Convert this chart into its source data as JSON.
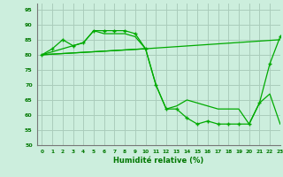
{
  "xlabel": "Humidité relative (%)",
  "background_color": "#cceedd",
  "grid_color": "#aaccbb",
  "line_color": "#00aa00",
  "ylim": [
    50,
    97
  ],
  "xlim": [
    -0.5,
    23
  ],
  "yticks": [
    50,
    55,
    60,
    65,
    70,
    75,
    80,
    85,
    90,
    95
  ],
  "xticks": [
    0,
    1,
    2,
    3,
    4,
    5,
    6,
    7,
    8,
    9,
    10,
    11,
    12,
    13,
    14,
    15,
    16,
    17,
    18,
    19,
    20,
    21,
    22,
    23
  ],
  "line1_x": [
    0,
    1,
    2,
    3,
    4,
    5,
    6,
    7,
    8,
    9,
    10,
    11,
    12,
    13,
    14,
    15,
    16,
    17,
    18,
    19,
    20,
    21,
    22,
    23
  ],
  "line1_y": [
    80,
    82,
    85,
    83,
    84,
    88,
    88,
    88,
    88,
    87,
    82,
    70,
    62,
    62,
    59,
    57,
    58,
    57,
    57,
    57,
    57,
    64,
    77,
    86
  ],
  "line2_x": [
    0,
    3,
    4,
    5,
    6,
    7,
    8,
    9,
    10
  ],
  "line2_y": [
    80,
    83,
    84,
    88,
    87,
    87,
    87,
    86,
    82
  ],
  "line3_x": [
    0,
    10,
    23
  ],
  "line3_y": [
    80,
    82,
    85
  ],
  "line4_x": [
    0,
    10,
    11,
    12,
    13,
    14,
    15,
    16,
    17,
    18,
    19,
    20,
    21,
    22,
    23
  ],
  "line4_y": [
    80,
    82,
    70,
    62,
    63,
    65,
    64,
    63,
    62,
    62,
    62,
    57,
    64,
    67,
    57
  ]
}
